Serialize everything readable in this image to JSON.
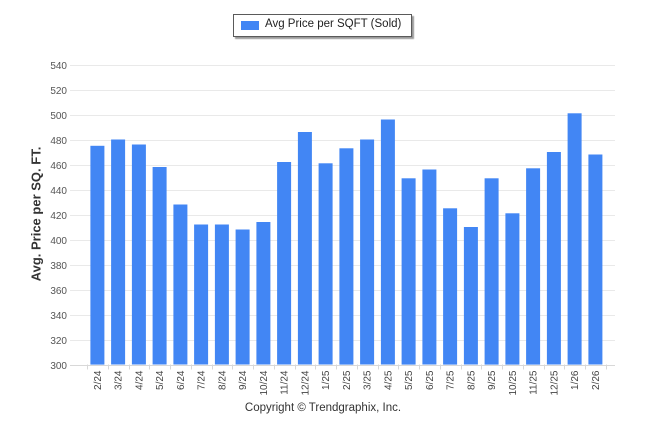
{
  "chart_data": {
    "type": "bar",
    "title": "",
    "legend": [
      {
        "label": "Avg Price per SQFT (Sold)",
        "color": "#4286f4"
      }
    ],
    "legend_placement": "top-center",
    "xlabel": "",
    "ylabel": "Avg. Price per SQ. FT.",
    "ylim": [
      300,
      540
    ],
    "yticks": [
      300,
      320,
      340,
      360,
      380,
      400,
      420,
      440,
      460,
      480,
      500,
      520,
      540
    ],
    "grid": true,
    "categories": [
      "2/24",
      "3/24",
      "4/24",
      "5/24",
      "6/24",
      "7/24",
      "8/24",
      "9/24",
      "10/24",
      "11/24",
      "12/24",
      "1/25",
      "2/25",
      "3/25",
      "4/25",
      "5/25",
      "6/25",
      "7/25",
      "8/25",
      "9/25",
      "10/25",
      "11/25",
      "12/25",
      "1/26",
      "2/26"
    ],
    "series": [
      {
        "name": "Avg Price per SQFT (Sold)",
        "color": "#4286f4",
        "values": [
          475,
          480,
          476,
          458,
          428,
          412,
          412,
          408,
          414,
          462,
          486,
          461,
          473,
          480,
          496,
          449,
          456,
          425,
          410,
          449,
          421,
          457,
          470,
          501,
          468
        ]
      }
    ]
  },
  "footer": {
    "copyright": "Copyright © Trendgraphix, Inc."
  }
}
